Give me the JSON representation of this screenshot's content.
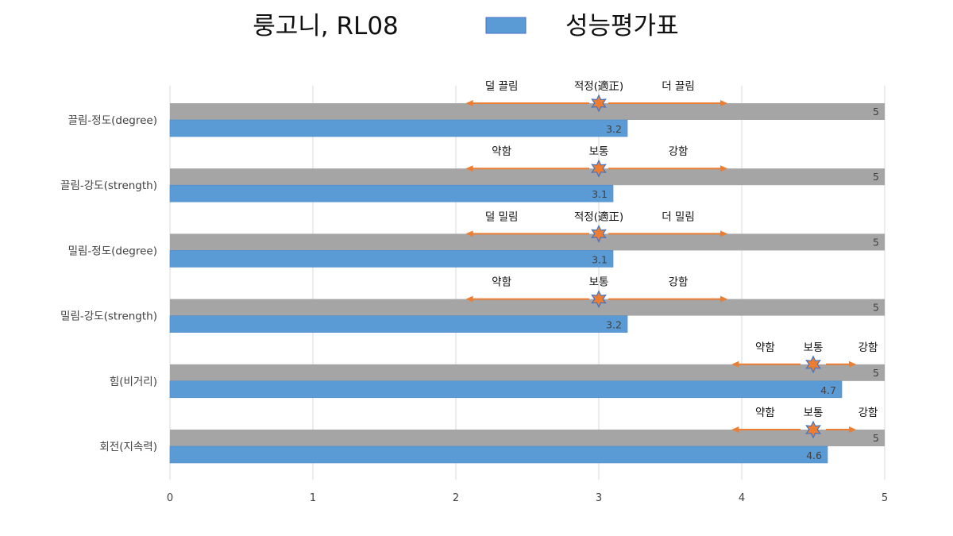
{
  "chart_data": {
    "type": "bar",
    "orientation": "horizontal",
    "title": "룽고니, RL08",
    "legend": {
      "position": "top",
      "entries": [
        "성능평가표"
      ]
    },
    "categories": [
      "끌림-정도(degree)",
      "끌림-강도(strength)",
      "밀림-정도(degree)",
      "밀림-강도(strength)",
      "힘(비거리)",
      "회전(지속력)"
    ],
    "series": [
      {
        "name": "",
        "color": "#A5A5A5",
        "values": [
          5,
          5,
          5,
          5,
          5,
          5
        ]
      },
      {
        "name": "성능평가표",
        "color": "#5B9BD5",
        "values": [
          3.2,
          3.1,
          3.1,
          3.2,
          4.7,
          4.6
        ]
      }
    ],
    "xlim": [
      0,
      5
    ],
    "x_ticks": [
      "0",
      "1",
      "2",
      "3",
      "4",
      "5"
    ],
    "grid": "vertical",
    "annotations": [
      {
        "left": "덜 끌림",
        "center": "적정(適正)",
        "right": "더 끌림",
        "low": 2.07,
        "marker": 3.0,
        "high": 3.9
      },
      {
        "left": "약함",
        "center": "보통",
        "right": "강함",
        "low": 2.07,
        "marker": 3.0,
        "high": 3.9
      },
      {
        "left": "덜 밀림",
        "center": "적정(適正)",
        "right": "더 밀림",
        "low": 2.07,
        "marker": 3.0,
        "high": 3.9
      },
      {
        "left": "약함",
        "center": "보통",
        "right": "강함",
        "low": 2.07,
        "marker": 3.0,
        "high": 3.9
      },
      {
        "left": "약함",
        "center": "보통",
        "right": "강함",
        "low": 3.93,
        "marker": 4.5,
        "high": 4.8
      },
      {
        "left": "약함",
        "center": "보통",
        "right": "강함",
        "low": 3.93,
        "marker": 4.5,
        "high": 4.8
      }
    ],
    "colors": {
      "arrow": "#ED7D31",
      "star": "#ED7D31",
      "star_outline": "#4472C4",
      "grid": "#D9D9D9"
    }
  }
}
